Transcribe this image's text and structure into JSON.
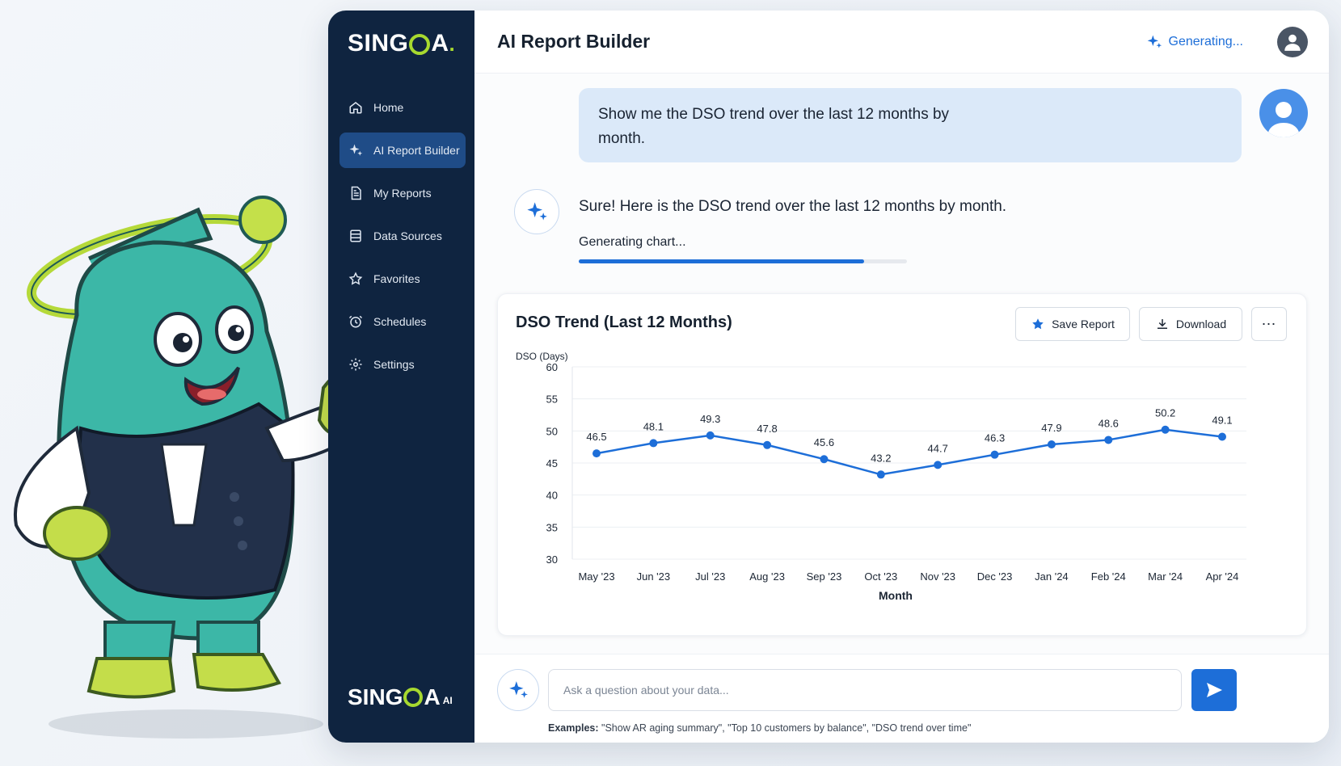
{
  "brand": {
    "name_left": "SING",
    "name_right": "A",
    "dot": ".",
    "ai_suffix": "AI"
  },
  "sidebar": {
    "items": [
      {
        "label": "Home",
        "icon": "home-icon"
      },
      {
        "label": "AI Report Builder",
        "icon": "sparkle-icon",
        "active": true
      },
      {
        "label": "My Reports",
        "icon": "document-icon"
      },
      {
        "label": "Data Sources",
        "icon": "database-icon"
      },
      {
        "label": "Favorites",
        "icon": "star-icon"
      },
      {
        "label": "Schedules",
        "icon": "clock-icon"
      },
      {
        "label": "Settings",
        "icon": "gear-icon"
      }
    ]
  },
  "header": {
    "title": "AI Report Builder",
    "status": "Generating..."
  },
  "chat": {
    "user_message": "Show me the DSO trend over the last 12 months by month.",
    "ai_reply": "Sure! Here is the DSO trend over the last 12 months by month.",
    "generating_label": "Generating chart...",
    "progress": 0.87
  },
  "chart_card": {
    "title": "DSO Trend (Last 12 Months)",
    "save_label": "Save Report",
    "download_label": "Download",
    "more_label": "⋯"
  },
  "chart_data": {
    "type": "line",
    "title": "DSO Trend (Last 12 Months)",
    "xlabel": "Month",
    "ylabel": "DSO (Days)",
    "ylim": [
      30,
      60
    ],
    "yticks": [
      30,
      35,
      40,
      45,
      50,
      55,
      60
    ],
    "grid": true,
    "categories": [
      "May '23",
      "Jun '23",
      "Jul '23",
      "Aug '23",
      "Sep '23",
      "Oct '23",
      "Nov '23",
      "Dec '23",
      "Jan '24",
      "Feb '24",
      "Mar '24",
      "Apr '24"
    ],
    "values": [
      46.5,
      48.1,
      49.3,
      47.8,
      45.6,
      43.2,
      44.7,
      46.3,
      47.9,
      48.6,
      50.2,
      49.1
    ],
    "color": "#1d6ed8"
  },
  "composer": {
    "placeholder": "Ask a question about your data...",
    "examples_label": "Examples:",
    "examples_text": "\"Show AR aging summary\", \"Top 10 customers by balance\", \"DSO trend over time\""
  }
}
